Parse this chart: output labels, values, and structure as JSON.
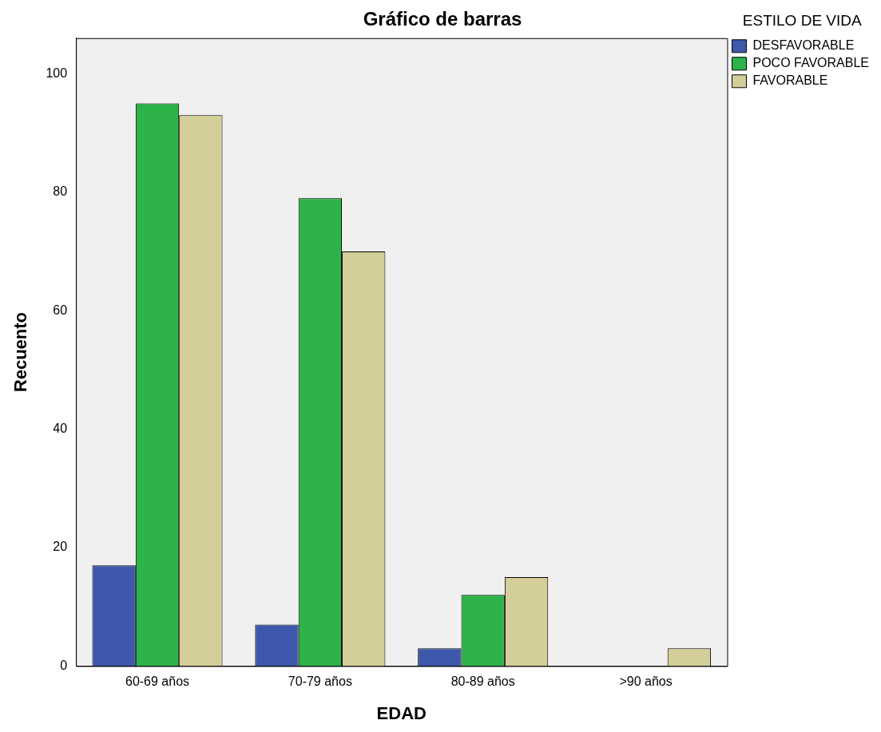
{
  "chart_data": {
    "type": "bar",
    "title": "Gráfico de barras",
    "xlabel": "EDAD",
    "ylabel": "Recuento",
    "legend_title": "ESTILO DE VIDA",
    "legend": "top right",
    "grid": false,
    "categories": [
      "60-69 años",
      "70-79 años",
      "80-89 años",
      ">90 años"
    ],
    "series": [
      {
        "name": "DESFAVORABLE",
        "color": "#3e58ac",
        "values": [
          17,
          7,
          3,
          0
        ]
      },
      {
        "name": "POCO FAVORABLE",
        "color": "#2db34a",
        "values": [
          95,
          79,
          12,
          0
        ]
      },
      {
        "name": "FAVORABLE",
        "color": "#d4cf98",
        "values": [
          93,
          70,
          15,
          3
        ]
      }
    ],
    "ylim": [
      0,
      106
    ],
    "yticks": [
      0,
      20,
      40,
      60,
      80,
      100
    ]
  }
}
